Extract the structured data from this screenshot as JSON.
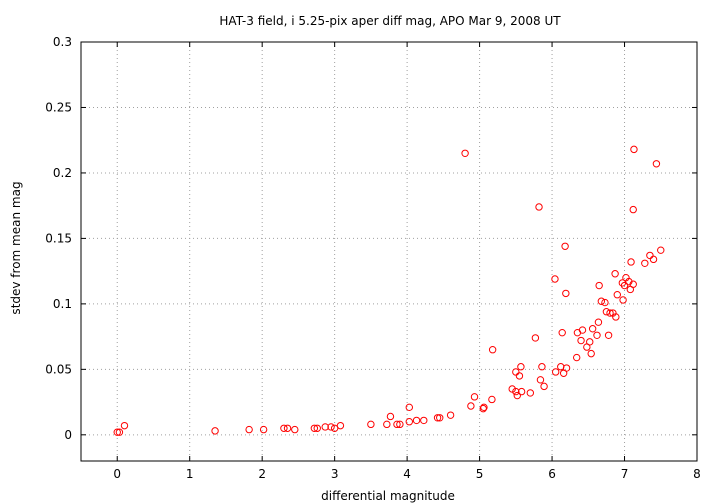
{
  "chart_data": {
    "type": "scatter",
    "title": "HAT-3 field, i 5.25-pix aper diff mag, APO Mar 9, 2008 UT",
    "xlabel": "differential magnitude",
    "ylabel": "stdev from mean mag",
    "xlim": [
      -0.5,
      8
    ],
    "ylim": [
      -0.02,
      0.3
    ],
    "xticks": [
      "0",
      "1",
      "2",
      "3",
      "4",
      "5",
      "6",
      "7",
      "8"
    ],
    "yticks": [
      "0",
      "0.05",
      "0.1",
      "0.15",
      "0.2",
      "0.25",
      "0.3"
    ],
    "grid": true,
    "legend": "none",
    "marker_color": "#ff0000",
    "points": [
      [
        0.0,
        0.002
      ],
      [
        0.03,
        0.002
      ],
      [
        0.1,
        0.007
      ],
      [
        1.35,
        0.003
      ],
      [
        1.82,
        0.004
      ],
      [
        2.02,
        0.004
      ],
      [
        2.3,
        0.005
      ],
      [
        2.35,
        0.005
      ],
      [
        2.45,
        0.004
      ],
      [
        2.72,
        0.005
      ],
      [
        2.76,
        0.005
      ],
      [
        2.87,
        0.006
      ],
      [
        2.95,
        0.006
      ],
      [
        3.0,
        0.005
      ],
      [
        3.08,
        0.007
      ],
      [
        3.5,
        0.008
      ],
      [
        3.72,
        0.008
      ],
      [
        3.77,
        0.014
      ],
      [
        3.86,
        0.008
      ],
      [
        3.9,
        0.008
      ],
      [
        4.03,
        0.021
      ],
      [
        4.03,
        0.01
      ],
      [
        4.13,
        0.011
      ],
      [
        4.23,
        0.011
      ],
      [
        4.42,
        0.013
      ],
      [
        4.45,
        0.013
      ],
      [
        4.6,
        0.015
      ],
      [
        4.8,
        0.215
      ],
      [
        4.88,
        0.022
      ],
      [
        4.93,
        0.029
      ],
      [
        5.05,
        0.02
      ],
      [
        5.06,
        0.021
      ],
      [
        5.17,
        0.027
      ],
      [
        5.18,
        0.065
      ],
      [
        5.45,
        0.035
      ],
      [
        5.5,
        0.033
      ],
      [
        5.5,
        0.048
      ],
      [
        5.52,
        0.03
      ],
      [
        5.55,
        0.045
      ],
      [
        5.57,
        0.052
      ],
      [
        5.58,
        0.033
      ],
      [
        5.7,
        0.032
      ],
      [
        5.77,
        0.074
      ],
      [
        5.82,
        0.174
      ],
      [
        5.84,
        0.042
      ],
      [
        5.86,
        0.052
      ],
      [
        5.89,
        0.037
      ],
      [
        6.04,
        0.119
      ],
      [
        6.05,
        0.048
      ],
      [
        6.12,
        0.052
      ],
      [
        6.14,
        0.078
      ],
      [
        6.16,
        0.047
      ],
      [
        6.18,
        0.144
      ],
      [
        6.19,
        0.108
      ],
      [
        6.2,
        0.051
      ],
      [
        6.34,
        0.059
      ],
      [
        6.35,
        0.078
      ],
      [
        6.4,
        0.072
      ],
      [
        6.42,
        0.08
      ],
      [
        6.48,
        0.067
      ],
      [
        6.52,
        0.071
      ],
      [
        6.54,
        0.062
      ],
      [
        6.56,
        0.081
      ],
      [
        6.62,
        0.076
      ],
      [
        6.64,
        0.086
      ],
      [
        6.65,
        0.114
      ],
      [
        6.68,
        0.102
      ],
      [
        6.73,
        0.101
      ],
      [
        6.75,
        0.094
      ],
      [
        6.78,
        0.076
      ],
      [
        6.8,
        0.093
      ],
      [
        6.84,
        0.093
      ],
      [
        6.87,
        0.123
      ],
      [
        6.88,
        0.09
      ],
      [
        6.9,
        0.107
      ],
      [
        6.97,
        0.116
      ],
      [
        6.98,
        0.103
      ],
      [
        7.0,
        0.114
      ],
      [
        7.02,
        0.12
      ],
      [
        7.06,
        0.117
      ],
      [
        7.08,
        0.111
      ],
      [
        7.09,
        0.132
      ],
      [
        7.12,
        0.172
      ],
      [
        7.12,
        0.115
      ],
      [
        7.13,
        0.218
      ],
      [
        7.28,
        0.131
      ],
      [
        7.35,
        0.137
      ],
      [
        7.4,
        0.134
      ],
      [
        7.44,
        0.207
      ],
      [
        7.5,
        0.141
      ]
    ]
  }
}
